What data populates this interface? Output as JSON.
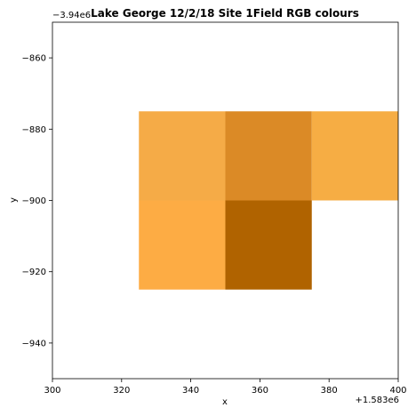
{
  "chart_data": {
    "type": "heatmap",
    "title": "Lake George 12/2/18 Site 1Field RGB colours",
    "xlabel": "x",
    "ylabel": "y",
    "xlim": [
      300,
      400
    ],
    "ylim": [
      -950,
      -850
    ],
    "x_offset_label": "+1.583e6",
    "y_offset_label": "−3.94e6",
    "x_ticks": [
      300,
      320,
      340,
      360,
      380,
      400
    ],
    "x_tick_labels": [
      "300",
      "320",
      "340",
      "360",
      "380",
      "400"
    ],
    "y_ticks": [
      -860,
      -880,
      -900,
      -920,
      -940
    ],
    "y_tick_labels": [
      "−860",
      "−880",
      "−900",
      "−920",
      "−940"
    ],
    "grid": false,
    "cell_size": 25,
    "cells": [
      {
        "x0": 325,
        "y0": -900,
        "x1": 350,
        "y1": -875,
        "color": "#f5ab47"
      },
      {
        "x0": 350,
        "y0": -900,
        "x1": 375,
        "y1": -875,
        "color": "#db8a26"
      },
      {
        "x0": 375,
        "y0": -900,
        "x1": 400,
        "y1": -875,
        "color": "#f6ad44"
      },
      {
        "x0": 325,
        "y0": -925,
        "x1": 350,
        "y1": -900,
        "color": "#fdac44"
      },
      {
        "x0": 350,
        "y0": -925,
        "x1": 375,
        "y1": -900,
        "color": "#b06300"
      }
    ]
  }
}
